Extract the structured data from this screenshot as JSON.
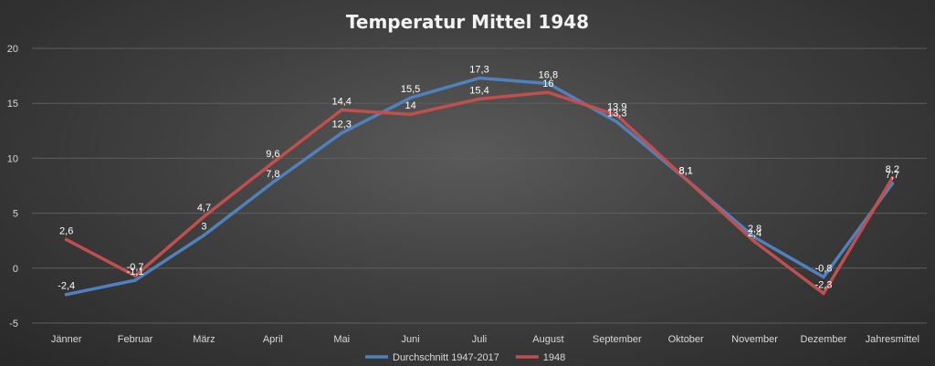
{
  "chart_data": {
    "type": "line",
    "title": "Temperatur Mittel 1948",
    "xlabel": "",
    "ylabel": "",
    "categories": [
      "Jänner",
      "Februar",
      "März",
      "April",
      "Mai",
      "Juni",
      "Juli",
      "August",
      "September",
      "Oktober",
      "November",
      "Dezember",
      "Jahresmittel"
    ],
    "ylim": [
      -5,
      20
    ],
    "yticks": [
      -5,
      0,
      5,
      10,
      15,
      20
    ],
    "grid": true,
    "legend_position": "bottom",
    "series": [
      {
        "name": "Durchschnitt 1947-2017",
        "color": "#4f81bd",
        "values": [
          -2.4,
          -1.1,
          3,
          7.8,
          12.3,
          15.5,
          17.3,
          16.8,
          13.3,
          8.1,
          2.8,
          -0.8,
          7.7
        ],
        "labels": [
          "-2,4",
          "-1,1",
          "3",
          "7,8",
          "12,3",
          "15,5",
          "17,3",
          "16,8",
          "13,3",
          "8,1",
          "2,8",
          "-0,8",
          "7,7"
        ]
      },
      {
        "name": "1948",
        "color": "#c0504d",
        "values": [
          2.6,
          -0.7,
          4.7,
          9.6,
          14.4,
          14,
          15.4,
          16,
          13.9,
          8.1,
          2.4,
          -2.3,
          8.2
        ],
        "labels": [
          "2,6",
          "-0,7",
          "4,7",
          "9,6",
          "14,4",
          "14",
          "15,4",
          "16",
          "13,9",
          "8,1",
          "2,4",
          "-2,3",
          "8,2"
        ]
      }
    ]
  }
}
